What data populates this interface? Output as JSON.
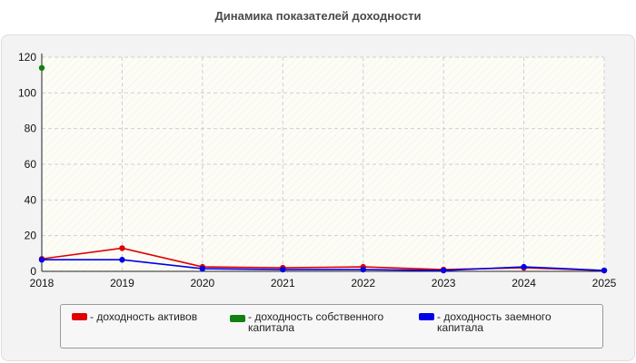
{
  "chart_data": {
    "type": "line",
    "title": "Динамика показателей доходности",
    "x": [
      2018,
      2019,
      2020,
      2021,
      2022,
      2023,
      2024,
      2025
    ],
    "x_tick_labels": [
      "2018",
      "2019",
      "2020",
      "2021",
      "2022",
      "2023",
      "2024",
      "2025"
    ],
    "y_ticks": [
      0,
      20,
      40,
      60,
      80,
      100,
      120
    ],
    "ylim": [
      0,
      120
    ],
    "xlabel": "",
    "ylabel": "",
    "grid": true,
    "legend_placement": "bottom",
    "series": [
      {
        "name": "- доходность активов",
        "color": "#e00000",
        "values": [
          7,
          13,
          2.5,
          2,
          2.5,
          1,
          2,
          0.5
        ]
      },
      {
        "name": "- доходность собственного капитала",
        "color": "#118011",
        "values": [
          114,
          null,
          null,
          null,
          null,
          null,
          null,
          null
        ]
      },
      {
        "name": "- доходность заемного капитала",
        "color": "#0000e8",
        "values": [
          6.5,
          6.5,
          1.5,
          1,
          1,
          0.5,
          2.5,
          0.5
        ]
      }
    ]
  }
}
